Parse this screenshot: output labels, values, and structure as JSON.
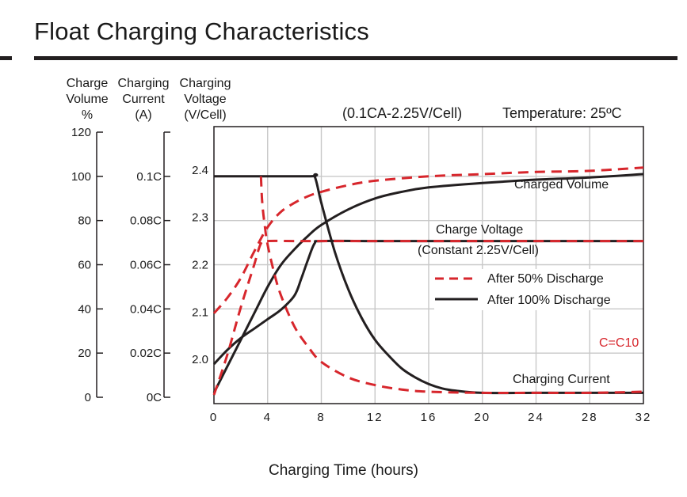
{
  "title": "Float Charging Characteristics",
  "chart_data": {
    "type": "line",
    "title": "Float Charging Characteristics",
    "subtitle": "(0.1CA-2.25V/Cell)",
    "temperature_note": "Temperature: 25ºC",
    "xlabel": "Charging Time (hours)",
    "xlim": [
      0,
      32
    ],
    "x_ticks": [
      "0",
      "4",
      "8",
      "12",
      "16",
      "20",
      "24",
      "28",
      "32"
    ],
    "axes": [
      {
        "header": [
          "Charge",
          "Volume",
          "%"
        ],
        "ticks": [
          "0",
          "20",
          "40",
          "60",
          "80",
          "100",
          "120"
        ],
        "ylim": [
          0,
          120
        ]
      },
      {
        "header": [
          "Charging",
          "Current",
          "(A)"
        ],
        "ticks": [
          "0C",
          "0.02C",
          "0.04C",
          "0.06C",
          "0.08C",
          "0.1C"
        ],
        "ylim": [
          0,
          0.12
        ]
      },
      {
        "header": [
          "Charging",
          "Voltage",
          "(V/Cell)"
        ],
        "ticks": [
          "2.0",
          "2.1",
          "2.2",
          "2.3",
          "2.4"
        ],
        "ylim": [
          1.92,
          2.48
        ]
      }
    ],
    "legend": [
      {
        "label": "After 50% Discharge",
        "color": "#d7262c",
        "dash": true
      },
      {
        "label": "After 100% Discharge",
        "color": "#231f20",
        "dash": false
      }
    ],
    "annotations": {
      "charged_volume": "Charged Volume",
      "charge_voltage": "Charge Voltage",
      "charge_voltage_note": "(Constant 2.25V/Cell)",
      "c_note": "C=C10",
      "charging_current": "Charging Current"
    },
    "colors": {
      "red": "#d7262c",
      "black": "#231f20",
      "grid": "#c8c8c8"
    },
    "series": [
      {
        "name": "After 100% Discharge",
        "kind": "Charged Volume",
        "axis": 0,
        "color": "#231f20",
        "dash": false,
        "points": [
          [
            0,
            2
          ],
          [
            1.5,
            20
          ],
          [
            3,
            38
          ],
          [
            4,
            50
          ],
          [
            5,
            60
          ],
          [
            6,
            67
          ],
          [
            7,
            73
          ],
          [
            8,
            78
          ],
          [
            10,
            85
          ],
          [
            12,
            90
          ],
          [
            14,
            93
          ],
          [
            16,
            95
          ],
          [
            20,
            97
          ],
          [
            24,
            98.5
          ],
          [
            28,
            99.5
          ],
          [
            32,
            101
          ]
        ]
      },
      {
        "name": "After 50% Discharge",
        "kind": "Charged Volume",
        "axis": 0,
        "color": "#d7262c",
        "dash": true,
        "points": [
          [
            0,
            38
          ],
          [
            1,
            45
          ],
          [
            2,
            54
          ],
          [
            3,
            66
          ],
          [
            4,
            77
          ],
          [
            5,
            84
          ],
          [
            6,
            88
          ],
          [
            7,
            91
          ],
          [
            8,
            93
          ],
          [
            10,
            96
          ],
          [
            12,
            98
          ],
          [
            16,
            100
          ],
          [
            20,
            101
          ],
          [
            24,
            102
          ],
          [
            28,
            102.5
          ],
          [
            32,
            104
          ]
        ]
      },
      {
        "name": "After 100% Discharge",
        "kind": "Charging Current",
        "axis": 1,
        "color": "#231f20",
        "dash": false,
        "points": [
          [
            0,
            0.1
          ],
          [
            7,
            0.1
          ],
          [
            7.5,
            0.1
          ],
          [
            8,
            0.088
          ],
          [
            9,
            0.066
          ],
          [
            10,
            0.049
          ],
          [
            11,
            0.036
          ],
          [
            12,
            0.026
          ],
          [
            13,
            0.019
          ],
          [
            14,
            0.013
          ],
          [
            15,
            0.009
          ],
          [
            16,
            0.006
          ],
          [
            17,
            0.004
          ],
          [
            18,
            0.003
          ],
          [
            20,
            0.002
          ],
          [
            24,
            0.002
          ],
          [
            28,
            0.002
          ],
          [
            32,
            0.002
          ]
        ]
      },
      {
        "name": "After 50% Discharge",
        "kind": "Charging Current",
        "axis": 1,
        "color": "#d7262c",
        "dash": true,
        "points": [
          [
            3.5,
            0.1
          ],
          [
            3.6,
            0.088
          ],
          [
            3.8,
            0.077
          ],
          [
            4,
            0.069
          ],
          [
            4.5,
            0.056
          ],
          [
            5,
            0.046
          ],
          [
            6,
            0.032
          ],
          [
            7,
            0.023
          ],
          [
            8,
            0.016
          ],
          [
            10,
            0.009
          ],
          [
            12,
            0.0055
          ],
          [
            14,
            0.0035
          ],
          [
            16,
            0.0025
          ],
          [
            20,
            0.002
          ],
          [
            24,
            0.002
          ],
          [
            28,
            0.002
          ],
          [
            32,
            0.0025
          ]
        ]
      },
      {
        "name": "After 100% Discharge",
        "kind": "Charge Voltage",
        "axis": 2,
        "color": "#231f20",
        "dash": false,
        "points": [
          [
            0,
            1.99
          ],
          [
            1,
            2.02
          ],
          [
            2,
            2.045
          ],
          [
            3,
            2.065
          ],
          [
            4,
            2.085
          ],
          [
            5,
            2.105
          ],
          [
            6,
            2.135
          ],
          [
            6.5,
            2.17
          ],
          [
            7,
            2.21
          ],
          [
            7.5,
            2.245
          ],
          [
            8,
            2.25
          ],
          [
            12,
            2.25
          ],
          [
            16,
            2.25
          ],
          [
            20,
            2.25
          ],
          [
            24,
            2.25
          ],
          [
            28,
            2.25
          ],
          [
            32,
            2.25
          ]
        ]
      },
      {
        "name": "After 50% Discharge",
        "kind": "Charge Voltage",
        "axis": 2,
        "color": "#d7262c",
        "dash": true,
        "points": [
          [
            0,
            1.925
          ],
          [
            1,
            2.01
          ],
          [
            2,
            2.11
          ],
          [
            3,
            2.2
          ],
          [
            3.5,
            2.245
          ],
          [
            4,
            2.25
          ],
          [
            6,
            2.25
          ],
          [
            8,
            2.25
          ],
          [
            12,
            2.25
          ],
          [
            16,
            2.25
          ],
          [
            20,
            2.25
          ],
          [
            24,
            2.25
          ],
          [
            28,
            2.25
          ],
          [
            32,
            2.25
          ]
        ]
      }
    ]
  }
}
